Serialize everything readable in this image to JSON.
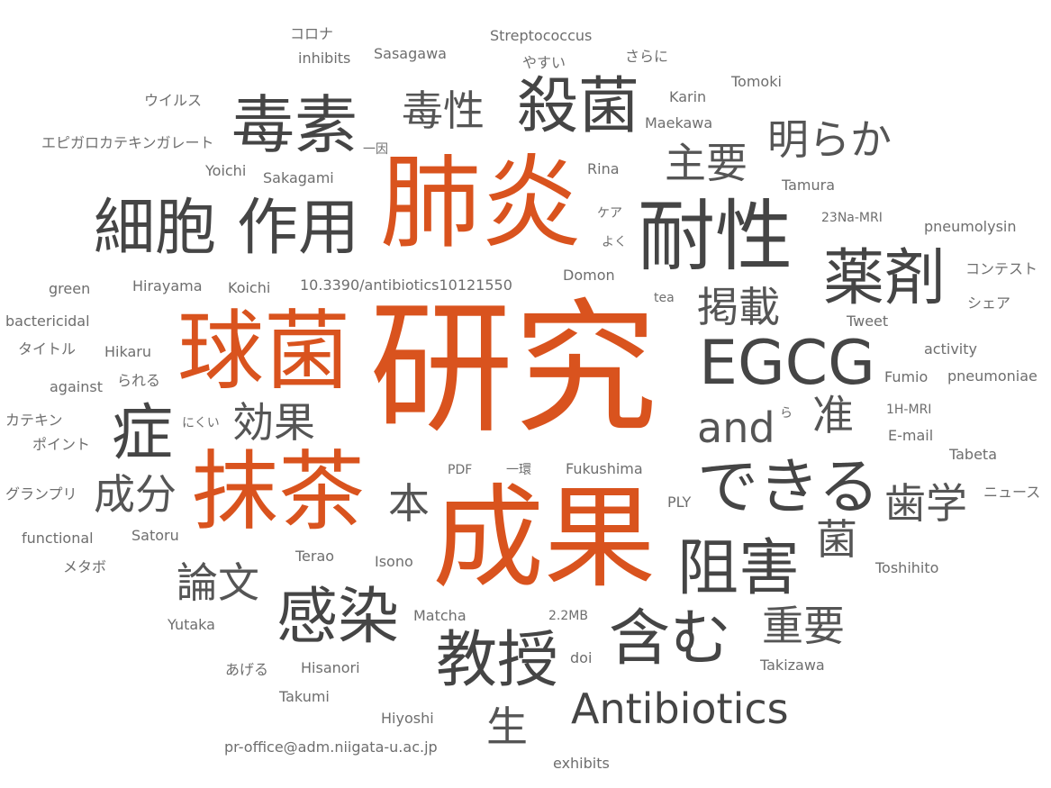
{
  "colors": {
    "accent": "#d9531e",
    "dark": "#454545",
    "mid": "#555555",
    "light": "#6e6e6e"
  },
  "words": {
    "kenkyu": "研究",
    "seika": "成果",
    "haien": "肺炎",
    "kyukin": "球菌",
    "maccha": "抹茶",
    "taisei": "耐性",
    "dokuso": "毒素",
    "sakkin": "殺菌",
    "saibo": "細胞",
    "sayo": "作用",
    "yakuzai": "薬剤",
    "egcg": "EGCG",
    "dekiru": "できる",
    "antibiotics": "Antibiotics",
    "sho": "症",
    "kansen": "感染",
    "kyoju": "教授",
    "fukumu": "含む",
    "sogai": "阻害",
    "dokusei": "毒性",
    "akiraka": "明らか",
    "shuyo": "主要",
    "keisai": "掲載",
    "and": "and",
    "koka": "効果",
    "jun": "准",
    "seibun": "成分",
    "hon": "本",
    "shigaku": "歯学",
    "kin": "菌",
    "ronbun": "論文",
    "juyo": "重要",
    "sei": "生",
    "korona": "コロナ",
    "inhibits": "inhibits",
    "sasagawa": "Sasagawa",
    "streptococcus": "Streptococcus",
    "yasui": "やすい",
    "sarani": "さらに",
    "tomoki": "Tomoki",
    "uirusu": "ウイルス",
    "karin": "Karin",
    "maekawa": "Maekawa",
    "egcg_kana": "エピガロカテキンガレート",
    "ichiin": "一因",
    "yoichi": "Yoichi",
    "sakagami": "Sakagami",
    "rina": "Rina",
    "tamura": "Tamura",
    "mri23": "23Na-MRI",
    "kea": "ケア",
    "pneumolysin": "pneumolysin",
    "yoku": "よく",
    "green": "green",
    "hirayama": "Hirayama",
    "koichi": "Koichi",
    "doi_num": "10.3390/antibiotics10121550",
    "domon": "Domon",
    "kontesuto": "コンテスト",
    "tea": "tea",
    "shea": "シェア",
    "bactericidal": "bactericidal",
    "tweet": "Tweet",
    "taitoru": "タイトル",
    "hikaru": "Hikaru",
    "activity": "activity",
    "rareru": "られる",
    "fumio": "Fumio",
    "against": "against",
    "pneumoniae": "pneumoniae",
    "ra": "ら",
    "mri1h": "1H-MRI",
    "katekin": "カテキン",
    "nikui": "にくい",
    "email": "E-mail",
    "pointo": "ポイント",
    "tabeta": "Tabeta",
    "pdf": "PDF",
    "ikkan": "一環",
    "fukushima": "Fukushima",
    "guranpuri": "グランプリ",
    "nyusu": "ニュース",
    "ply": "PLY",
    "functional": "functional",
    "satoru": "Satoru",
    "metabo": "メタボ",
    "terao": "Terao",
    "isono": "Isono",
    "toshihito": "Toshihito",
    "yutaka": "Yutaka",
    "matcha": "Matcha",
    "size": "2.2MB",
    "ageru": "あげる",
    "hisanori": "Hisanori",
    "doi": "doi",
    "takizawa": "Takizawa",
    "takumi": "Takumi",
    "hiyoshi": "Hiyoshi",
    "email_addr": "pr-office@adm.niigata-u.ac.jp",
    "exhibits": "exhibits"
  }
}
